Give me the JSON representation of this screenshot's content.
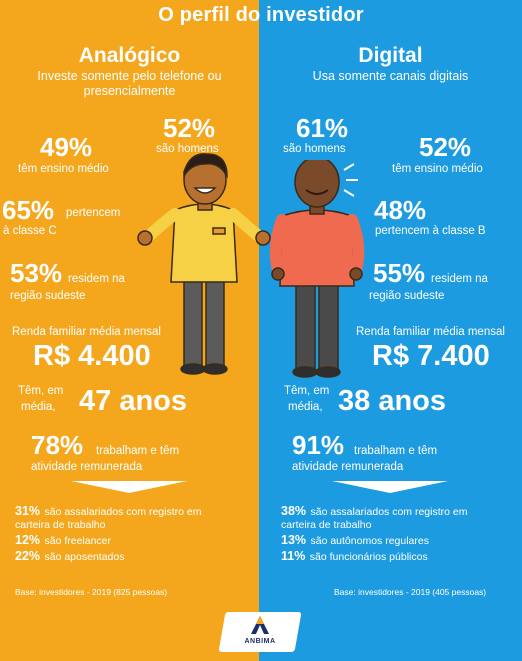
{
  "title": "O perfil do investidor",
  "colors": {
    "left": "#f4a71d",
    "right": "#1d9be0"
  },
  "left": {
    "heading": "Analógico",
    "subtitle_l1": "Investe somente pelo telefone ou",
    "subtitle_l2": "presencialmente",
    "educ_pct": "49%",
    "educ_txt": "têm ensino médio",
    "men_pct": "52%",
    "men_txt": "são homens",
    "class_pct": "65%",
    "class_txt1": "pertencem",
    "class_txt2": "à classe C",
    "region_pct": "53%",
    "region_txt1": "residem na",
    "region_txt2": "região sudeste",
    "income_label": "Renda familiar média mensal",
    "income_value": "R$ 4.400",
    "age_txt1": "Têm, em",
    "age_txt2": "média,",
    "age_value": "47 anos",
    "work_pct": "78%",
    "work_txt1": "trabalham e têm",
    "work_txt2": "atividade remunerada",
    "d1_pct": "31%",
    "d1_txt1": "são assalariados com registro em",
    "d1_txt2": "carteira de trabalho",
    "d2_pct": "12%",
    "d2_txt": "são freelancer",
    "d3_pct": "22%",
    "d3_txt": "são aposentados",
    "base": "Base: investidores - 2019 (825 pessoas)"
  },
  "right": {
    "heading": "Digital",
    "subtitle": "Usa somente canais digitais",
    "men_pct": "61%",
    "men_txt": "são homens",
    "educ_pct": "52%",
    "educ_txt": "têm ensino médio",
    "class_pct": "48%",
    "class_txt": "pertencem à classe B",
    "region_pct": "55%",
    "region_txt1": "residem na",
    "region_txt2": "região sudeste",
    "income_label": "Renda familiar média mensal",
    "income_value": "R$ 7.400",
    "age_txt1": "Têm, em",
    "age_txt2": "média,",
    "age_value": "38 anos",
    "work_pct": "91%",
    "work_txt1": "trabalham e têm",
    "work_txt2": "atividade remunerada",
    "d1_pct": "38%",
    "d1_txt1": "são assalariados com registro em",
    "d1_txt2": "carteira de trabalho",
    "d2_pct": "13%",
    "d2_txt": "são autônomos regulares",
    "d3_pct": "11%",
    "d3_txt": "são funcionários públicos",
    "base": "Base: investidores - 2019 (405 pessoas)"
  },
  "logo": "ANBIMA"
}
